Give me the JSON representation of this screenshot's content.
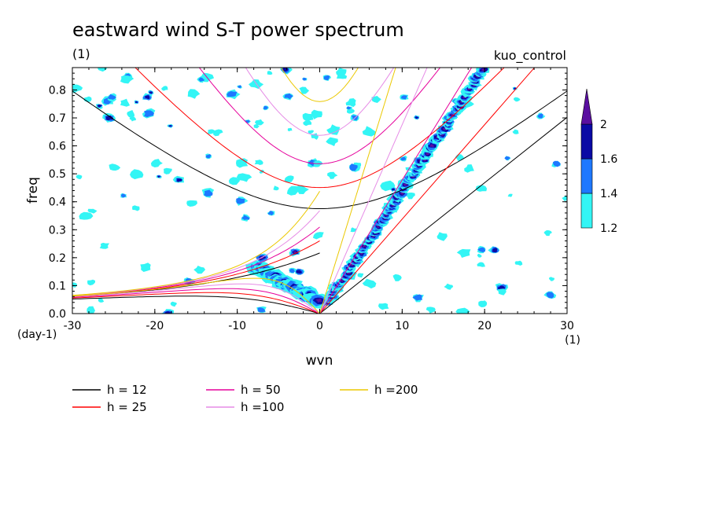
{
  "chart_data": {
    "type": "heatmap",
    "title": "eastward wind S-T power spectrum",
    "subtitle_left": "(1)",
    "subtitle_right": "kuo_control",
    "xlabel": "wvn",
    "ylabel": "freq",
    "x_unit": "(1)",
    "y_unit": "(day-1)",
    "xlim": [
      -30,
      30
    ],
    "ylim": [
      0,
      0.88
    ],
    "x_ticks": [
      "-30",
      "-20",
      "-10",
      "0",
      "10",
      "20",
      "30"
    ],
    "y_ticks": [
      "0.0",
      "0.1",
      "0.2",
      "0.3",
      "0.4",
      "0.5",
      "0.6",
      "0.7",
      "0.8"
    ],
    "colorbar": {
      "levels": [
        "1.2",
        "1.4",
        "1.6",
        "2"
      ],
      "colors": [
        "#33f5f5",
        "#1e78ff",
        "#0a0aa5",
        "#5a0fa0"
      ]
    },
    "dispersion_curves": [
      {
        "label": "h = 12",
        "h": 12,
        "color": "#000000"
      },
      {
        "label": "h = 25",
        "h": 25,
        "color": "#ff0000"
      },
      {
        "label": "h = 50",
        "h": 50,
        "color": "#e6009b"
      },
      {
        "label": "h =100",
        "h": 100,
        "color": "#e68ce6"
      },
      {
        "label": "h =200",
        "h": 200,
        "color": "#ebc800"
      }
    ]
  }
}
